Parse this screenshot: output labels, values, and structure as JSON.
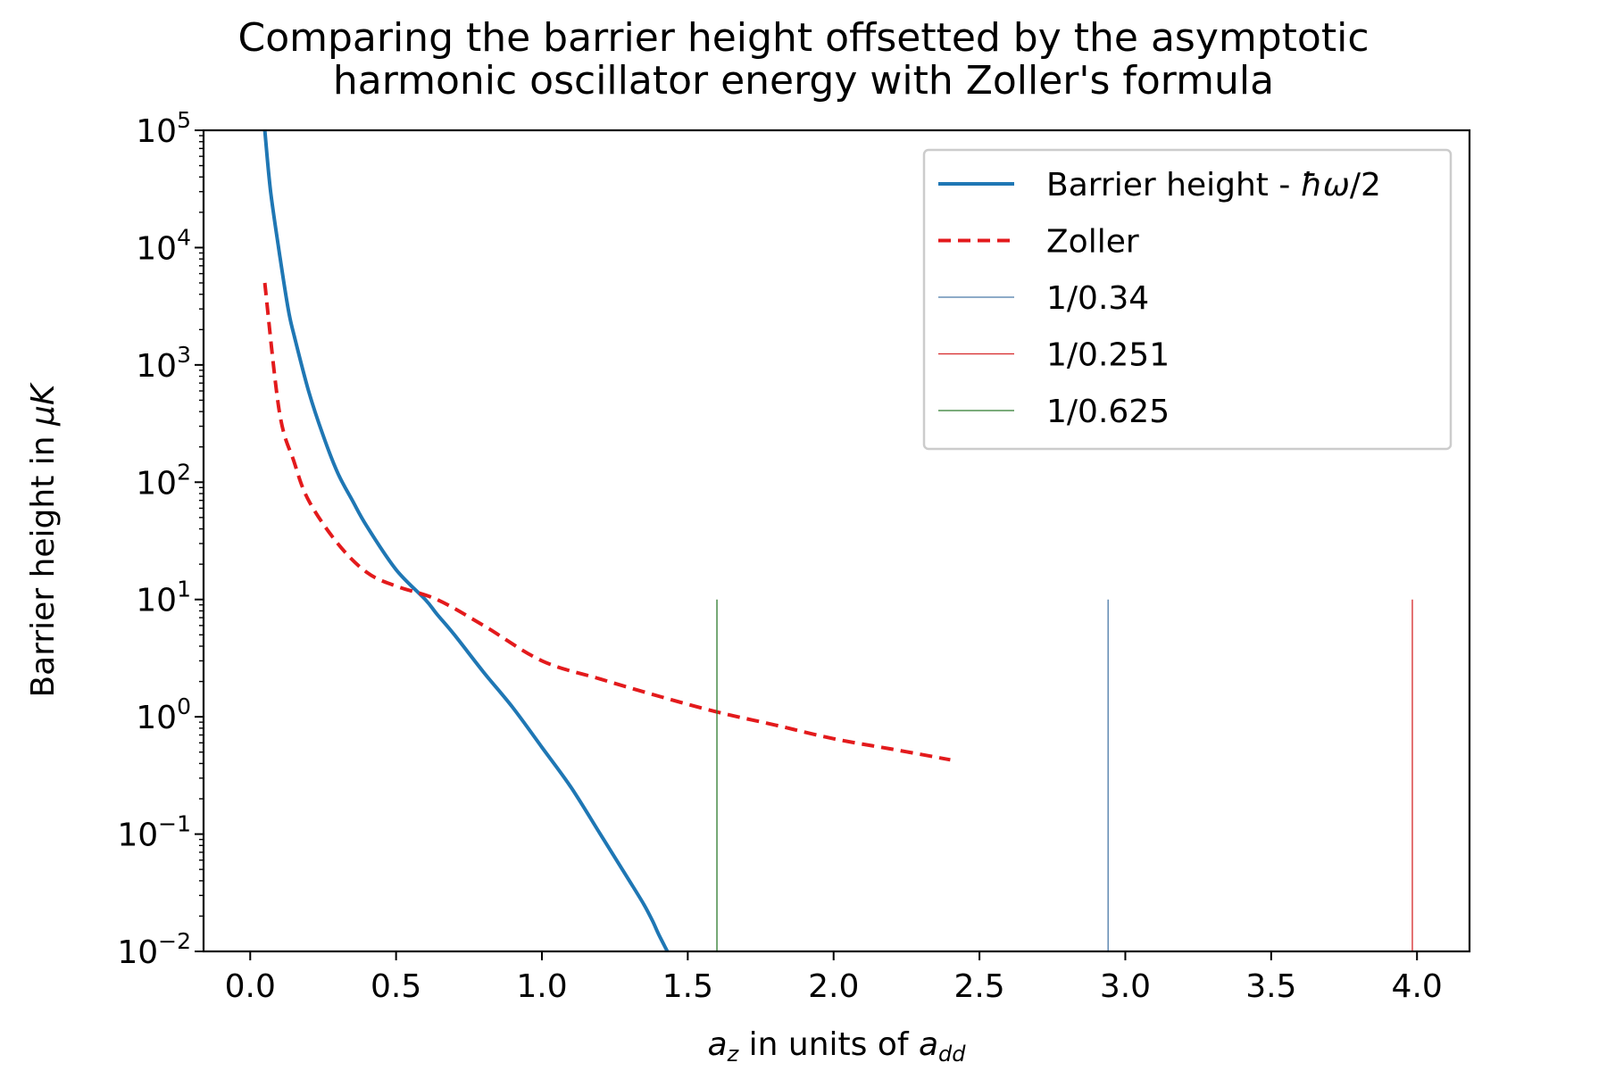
{
  "chart_data": {
    "type": "line",
    "title_lines": [
      "Comparing the barrier height offsetted by the asymptotic",
      "harmonic oscillator energy with Zoller's formula"
    ],
    "xlabel": {
      "main": "a",
      "main_sub": "z",
      "middle": " in units of ",
      "unit": "a",
      "unit_sub": "dd"
    },
    "ylabel": {
      "text": "Barrier height in ",
      "unit": "μK"
    },
    "xlim": [
      -0.16,
      4.18
    ],
    "ylim": [
      0.01,
      100000
    ],
    "yscale": "log",
    "xticks": [
      0.0,
      0.5,
      1.0,
      1.5,
      2.0,
      2.5,
      3.0,
      3.5,
      4.0
    ],
    "xtick_labels": [
      "0.0",
      "0.5",
      "1.0",
      "1.5",
      "2.0",
      "2.5",
      "3.0",
      "3.5",
      "4.0"
    ],
    "yticks": [
      {
        "value": 0.01,
        "base": "10",
        "exp": "−2"
      },
      {
        "value": 0.1,
        "base": "10",
        "exp": "−1"
      },
      {
        "value": 1,
        "base": "10",
        "exp": "0"
      },
      {
        "value": 10,
        "base": "10",
        "exp": "1"
      },
      {
        "value": 100,
        "base": "10",
        "exp": "2"
      },
      {
        "value": 1000,
        "base": "10",
        "exp": "3"
      },
      {
        "value": 10000,
        "base": "10",
        "exp": "4"
      },
      {
        "value": 100000,
        "base": "10",
        "exp": "5"
      }
    ],
    "grid": false,
    "legend": "top-right",
    "series": [
      {
        "name": "Barrier height - ħω/2",
        "legend_parts": [
          "Barrier height - ",
          "ħω",
          "/2"
        ],
        "color": "#1f77b4",
        "style": "solid",
        "x": [
          0.05,
          0.07,
          0.1,
          0.13,
          0.15,
          0.2,
          0.25,
          0.3,
          0.35,
          0.4,
          0.5,
          0.6,
          0.64,
          0.7,
          0.8,
          0.9,
          1.0,
          1.1,
          1.2,
          1.3,
          1.35,
          1.38,
          1.4,
          1.43
        ],
        "y": [
          100000,
          30000,
          9000,
          3000,
          1800,
          600,
          250,
          120,
          70,
          42,
          18,
          10,
          7.5,
          5.0,
          2.4,
          1.2,
          0.55,
          0.25,
          0.1,
          0.04,
          0.025,
          0.018,
          0.014,
          0.01
        ]
      },
      {
        "name": "Zoller",
        "legend_parts": [
          "Zoller"
        ],
        "color": "#e31a1c",
        "style": "dashed",
        "x": [
          0.05,
          0.1,
          0.15,
          0.2,
          0.3,
          0.4,
          0.5,
          0.64,
          0.8,
          1.0,
          1.2,
          1.4,
          1.6,
          1.8,
          2.0,
          2.2,
          2.4
        ],
        "y": [
          5000,
          400,
          150,
          70,
          30,
          17,
          13,
          10,
          6,
          3,
          2.1,
          1.5,
          1.1,
          0.85,
          0.65,
          0.53,
          0.43
        ]
      }
    ],
    "vlines": [
      {
        "name": "1/0.34",
        "x": 2.941,
        "ymin": 0.01,
        "ymax": 10,
        "color": "#4a79a8"
      },
      {
        "name": "1/0.251",
        "x": 3.984,
        "ymin": 0.01,
        "ymax": 10,
        "color": "#d62728"
      },
      {
        "name": "1/0.625",
        "x": 1.6,
        "ymin": 0.01,
        "ymax": 10,
        "color": "#2c7a2c"
      }
    ]
  }
}
